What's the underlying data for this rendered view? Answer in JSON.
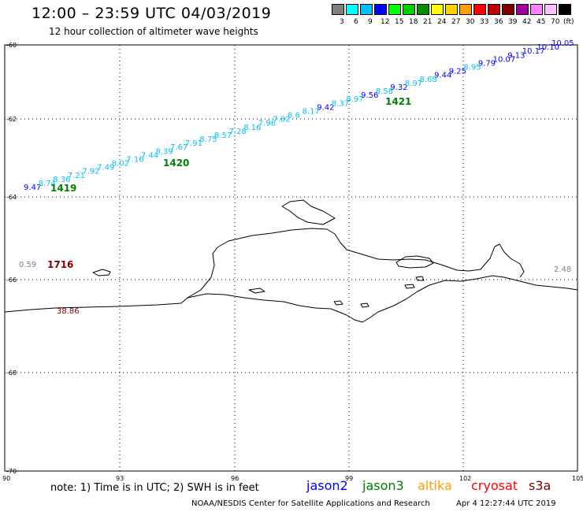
{
  "header": {
    "title": "12:00 – 23:59 UTC 04/03/2019",
    "subtitle": "12 hour collection of altimeter wave heights"
  },
  "colorbar": {
    "colors": [
      "#808080",
      "#00ffff",
      "#00c0ff",
      "#0000ff",
      "#00ff00",
      "#00d000",
      "#009000",
      "#ffff00",
      "#ffd000",
      "#ffa000",
      "#ff0000",
      "#c00000",
      "#800000",
      "#a000a0",
      "#ff80ff",
      "#ffc0ff",
      "#000000"
    ],
    "labels": [
      "3",
      "6",
      "9",
      "12",
      "15",
      "18",
      "21",
      "24",
      "27",
      "30",
      "33",
      "36",
      "39",
      "42",
      "45",
      "70"
    ],
    "unit": "(ft)"
  },
  "axes": {
    "lat_labels": [
      "-60",
      "-62",
      "-64",
      "-66",
      "-68",
      "-70"
    ],
    "lon_labels": [
      "90",
      "93",
      "96",
      "99",
      "102",
      "105"
    ]
  },
  "tracks": {
    "jason3_upper": [
      {
        "v": "9.47",
        "c": "#0000ff"
      },
      {
        "v": "8.74",
        "c": "#00c0ff"
      },
      {
        "v": "8.36",
        "c": "#00c0ff"
      },
      {
        "v": "7.21",
        "c": "#00c0ff"
      },
      {
        "v": "7.92",
        "c": "#00c0ff"
      },
      {
        "v": "7.49",
        "c": "#00c0ff"
      },
      {
        "v": "8.02",
        "c": "#00c0ff"
      },
      {
        "v": "7.16",
        "c": "#00c0ff"
      },
      {
        "v": "7.44",
        "c": "#00c0ff"
      },
      {
        "v": "8.39",
        "c": "#00c0ff"
      },
      {
        "v": "7.67",
        "c": "#00c0ff"
      },
      {
        "v": "7.91",
        "c": "#00c0ff"
      },
      {
        "v": "8.75",
        "c": "#00c0ff"
      },
      {
        "v": "8.57",
        "c": "#00c0ff"
      },
      {
        "v": "7.28",
        "c": "#00c0ff"
      },
      {
        "v": "8.16",
        "c": "#00c0ff"
      },
      {
        "v": "7.96",
        "c": "#00c0ff"
      },
      {
        "v": "7.82",
        "c": "#00c0ff"
      },
      {
        "v": "8.6",
        "c": "#00c0ff"
      },
      {
        "v": "8.17",
        "c": "#00c0ff"
      },
      {
        "v": "9.42",
        "c": "#0000ff"
      },
      {
        "v": "8.37",
        "c": "#00c0ff"
      },
      {
        "v": "8.97",
        "c": "#00c0ff"
      },
      {
        "v": "9.56",
        "c": "#0000ff"
      },
      {
        "v": "8.58",
        "c": "#00c0ff"
      },
      {
        "v": "9.32",
        "c": "#0000ff"
      },
      {
        "v": "8.97",
        "c": "#00c0ff"
      },
      {
        "v": "8.68",
        "c": "#00c0ff"
      },
      {
        "v": "9.44",
        "c": "#0000ff"
      },
      {
        "v": "9.25",
        "c": "#0000ff"
      },
      {
        "v": "8.95",
        "c": "#00c0ff"
      },
      {
        "v": "9.79",
        "c": "#0000ff"
      },
      {
        "v": "10.07",
        "c": "#0000ff"
      },
      {
        "v": "9.13",
        "c": "#0000ff"
      },
      {
        "v": "10.17",
        "c": "#0000ff"
      },
      {
        "v": "10.10",
        "c": "#0000ff"
      },
      {
        "v": "10.05",
        "c": "#0000ff"
      }
    ],
    "time_labels": [
      {
        "t": "1419",
        "c": "#008000"
      },
      {
        "t": "1420",
        "c": "#008000"
      },
      {
        "t": "1421",
        "c": "#008000"
      },
      {
        "t": "1716",
        "c": "#800000"
      }
    ],
    "misc_values": [
      {
        "v": "0.59",
        "c": "#808080"
      },
      {
        "v": "38.86",
        "c": "#800000"
      },
      {
        "v": "2.48",
        "c": "#808080"
      }
    ]
  },
  "footer": {
    "note": "note: 1) Time is in UTC; 2) SWH is in feet",
    "satellites": [
      {
        "name": "jason2",
        "color": "#0000ff"
      },
      {
        "name": "jason3",
        "color": "#008000"
      },
      {
        "name": "altika",
        "color": "#ffa000"
      },
      {
        "name": "cryosat",
        "color": "#ff0000"
      },
      {
        "name": "s3a",
        "color": "#800000"
      }
    ],
    "credit": "NOAA/NESDIS Center for Satellite Applications and Research",
    "timestamp": "Apr  4 12:27:44 UTC 2019"
  }
}
